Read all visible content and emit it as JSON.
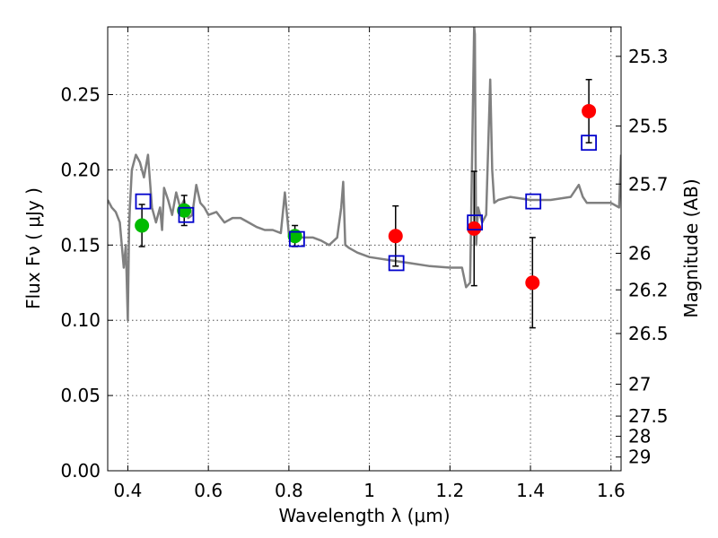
{
  "chart_data": {
    "type": "scatter",
    "xlabel": "Wavelength  λ (μm)",
    "ylabel": "Flux  Fν  ( μJy )",
    "y2label": "Magnitude (AB)",
    "xlim": [
      0.35,
      1.625
    ],
    "ylim": [
      0.0,
      0.295
    ],
    "grid": true,
    "x_ticks": [
      0.4,
      0.6,
      0.8,
      1.0,
      1.2,
      1.4,
      1.6
    ],
    "x_tick_labels": [
      "0.4",
      "0.6",
      "0.8",
      "1",
      "1.2",
      "1.4",
      "1.6"
    ],
    "y_ticks": [
      0.0,
      0.05,
      0.1,
      0.15,
      0.2,
      0.25
    ],
    "y_tick_labels": [
      "0.00",
      "0.05",
      "0.10",
      "0.15",
      "0.20",
      "0.25"
    ],
    "y2_ticks": [
      25.3,
      25.5,
      25.7,
      26,
      26.2,
      26.5,
      27,
      27.5,
      28,
      29
    ],
    "y2_tick_labels": [
      "25.3",
      "25.5",
      "25.7",
      "26",
      "26.2",
      "26.5",
      "27",
      "27.5",
      "28",
      "29"
    ],
    "series": [
      {
        "marker": "line",
        "color": "#808080",
        "x": [
          0.35,
          0.36,
          0.37,
          0.38,
          0.385,
          0.39,
          0.395,
          0.4,
          0.403,
          0.405,
          0.41,
          0.42,
          0.43,
          0.44,
          0.45,
          0.46,
          0.47,
          0.48,
          0.485,
          0.49,
          0.5,
          0.51,
          0.52,
          0.53,
          0.54,
          0.55,
          0.56,
          0.57,
          0.58,
          0.59,
          0.6,
          0.62,
          0.64,
          0.66,
          0.68,
          0.7,
          0.72,
          0.74,
          0.76,
          0.78,
          0.79,
          0.8,
          0.82,
          0.84,
          0.86,
          0.88,
          0.9,
          0.92,
          0.93,
          0.935,
          0.94,
          0.95,
          0.97,
          1.0,
          1.05,
          1.1,
          1.15,
          1.2,
          1.23,
          1.24,
          1.25,
          1.26,
          1.262,
          1.265,
          1.27,
          1.28,
          1.29,
          1.3,
          1.305,
          1.31,
          1.32,
          1.35,
          1.4,
          1.45,
          1.5,
          1.52,
          1.53,
          1.54,
          1.55,
          1.6,
          1.62,
          1.625
        ],
        "y": [
          0.18,
          0.175,
          0.172,
          0.165,
          0.15,
          0.135,
          0.15,
          0.1,
          0.16,
          0.175,
          0.2,
          0.21,
          0.205,
          0.195,
          0.21,
          0.175,
          0.165,
          0.175,
          0.16,
          0.188,
          0.18,
          0.17,
          0.185,
          0.175,
          0.18,
          0.168,
          0.17,
          0.19,
          0.178,
          0.175,
          0.17,
          0.172,
          0.165,
          0.168,
          0.168,
          0.165,
          0.162,
          0.16,
          0.16,
          0.158,
          0.185,
          0.157,
          0.155,
          0.155,
          0.155,
          0.153,
          0.15,
          0.155,
          0.175,
          0.192,
          0.15,
          0.148,
          0.145,
          0.142,
          0.14,
          0.138,
          0.136,
          0.135,
          0.135,
          0.122,
          0.125,
          0.295,
          0.29,
          0.15,
          0.175,
          0.165,
          0.17,
          0.26,
          0.2,
          0.178,
          0.18,
          0.182,
          0.18,
          0.18,
          0.182,
          0.19,
          0.182,
          0.178,
          0.178,
          0.178,
          0.175,
          0.21
        ]
      },
      {
        "marker": "filled-circle",
        "color": "#00bb00",
        "x": [
          0.435,
          0.54,
          0.815
        ],
        "y": [
          0.163,
          0.173,
          0.156
        ],
        "yerr": [
          0.014,
          0.01,
          0.007
        ]
      },
      {
        "marker": "filled-circle",
        "color": "#ff0000",
        "x": [
          1.065,
          1.26,
          1.405,
          1.545
        ],
        "y": [
          0.156,
          0.161,
          0.125,
          0.239
        ],
        "yerr": [
          0.02,
          0.038,
          0.03,
          0.021
        ]
      },
      {
        "marker": "open-square",
        "color": "#0000cc",
        "x": [
          0.438,
          0.545,
          0.82,
          1.067,
          1.262,
          1.407,
          1.545
        ],
        "y": [
          0.179,
          0.17,
          0.154,
          0.138,
          0.165,
          0.179,
          0.218
        ]
      }
    ]
  }
}
